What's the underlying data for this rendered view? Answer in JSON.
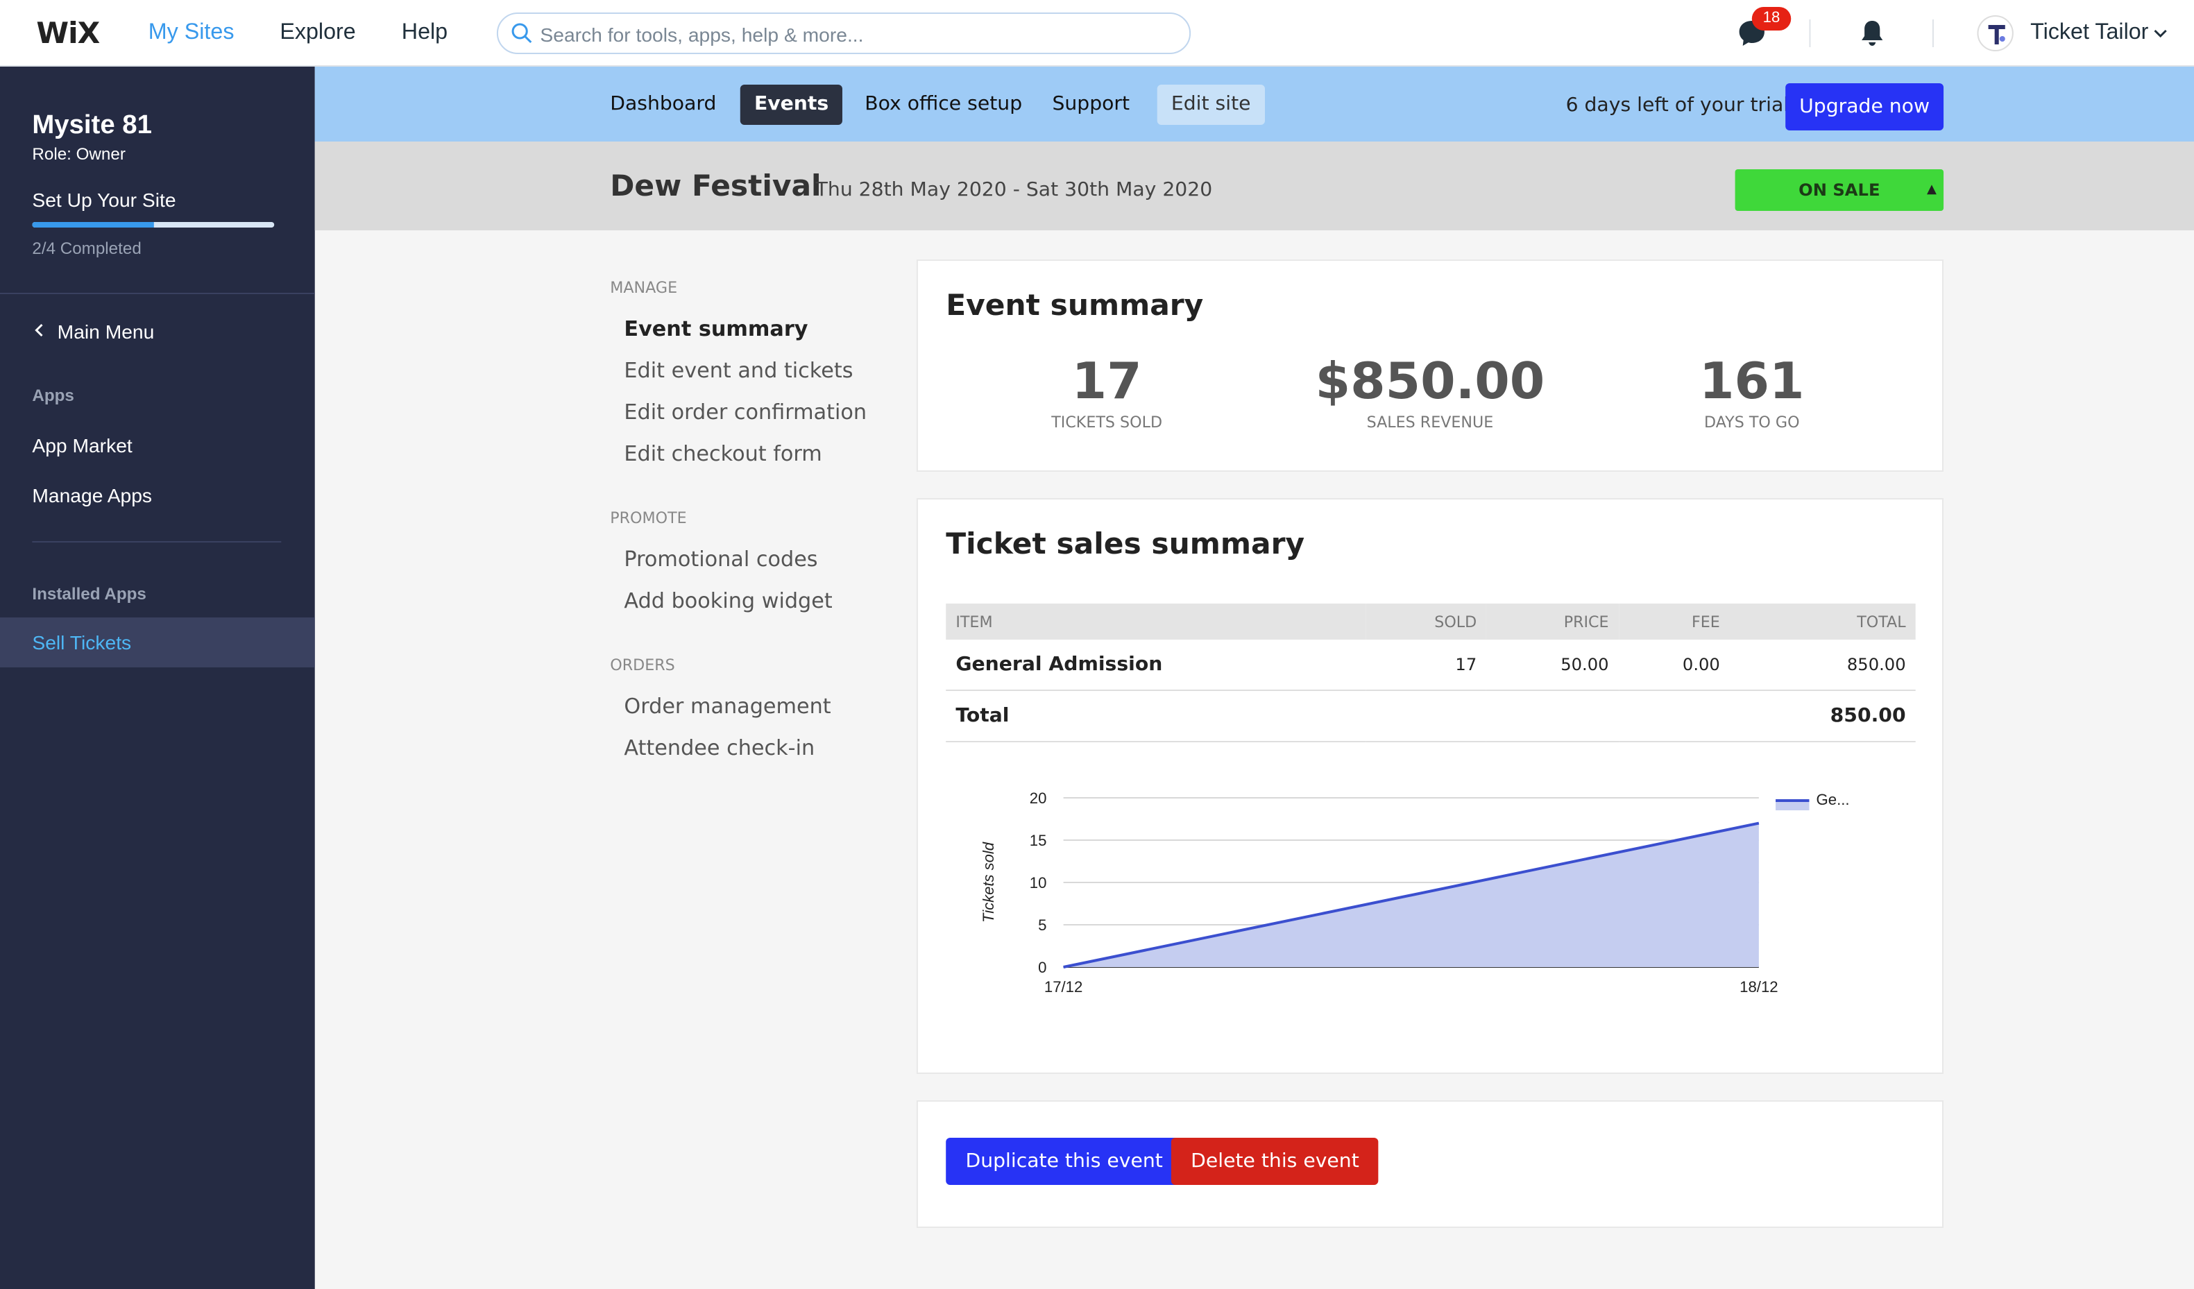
{
  "topbar": {
    "logo": "WiX",
    "nav": [
      "My Sites",
      "Explore",
      "Help"
    ],
    "search_placeholder": "Search for tools, apps, help & more...",
    "chat_badge": "18",
    "user_name": "Ticket Tailor"
  },
  "sidebar": {
    "site_name": "Mysite 81",
    "role": "Role: Owner",
    "setup_label": "Set Up Your Site",
    "progress": 0.5,
    "progress_text": "2/4 Completed",
    "main_menu": "Main Menu",
    "apps_section": "Apps",
    "app_market": "App Market",
    "manage_apps": "Manage Apps",
    "installed_section": "Installed Apps",
    "active_item": "Sell Tickets"
  },
  "appnav": {
    "tabs": [
      "Dashboard",
      "Events",
      "Box office setup",
      "Support",
      "Edit site"
    ],
    "trial_text": "6 days left of your trial.",
    "upgrade_label": "Upgrade now"
  },
  "event": {
    "title": "Dew Festival",
    "dates": "Thu 28th May 2020 - Sat 30th May 2020",
    "status": "ON SALE"
  },
  "menu": {
    "manage_label": "MANAGE",
    "manage_items": [
      "Event summary",
      "Edit event and tickets",
      "Edit order confirmation",
      "Edit checkout form"
    ],
    "promote_label": "PROMOTE",
    "promote_items": [
      "Promotional codes",
      "Add booking widget"
    ],
    "orders_label": "ORDERS",
    "orders_items": [
      "Order management",
      "Attendee check-in"
    ]
  },
  "summary": {
    "title": "Event summary",
    "stats": [
      {
        "value": "17",
        "label": "TICKETS SOLD"
      },
      {
        "value": "$850.00",
        "label": "SALES REVENUE"
      },
      {
        "value": "161",
        "label": "DAYS TO GO"
      }
    ]
  },
  "sales": {
    "title": "Ticket sales summary",
    "headers": [
      "ITEM",
      "SOLD",
      "PRICE",
      "FEE",
      "TOTAL"
    ],
    "rows": [
      {
        "item": "General Admission",
        "sold": "17",
        "price": "50.00",
        "fee": "0.00",
        "total": "850.00"
      }
    ],
    "total_label": "Total",
    "total_value": "850.00"
  },
  "chart_data": {
    "type": "area",
    "x": [
      "17/12",
      "18/12"
    ],
    "series": [
      {
        "name": "Ge...",
        "values": [
          0,
          17
        ]
      }
    ],
    "ylabel": "Tickets sold",
    "yticks": [
      0,
      5,
      10,
      15,
      20
    ],
    "ylim": [
      0,
      20
    ],
    "grid": true,
    "legend": "top-right",
    "color": "#3b4fcf",
    "fill": "#c5cdf0"
  },
  "actions": {
    "duplicate_label": "Duplicate this event",
    "delete_label": "Delete this event",
    "duplicate_color": "#2733f5",
    "delete_color": "#d4231a"
  }
}
